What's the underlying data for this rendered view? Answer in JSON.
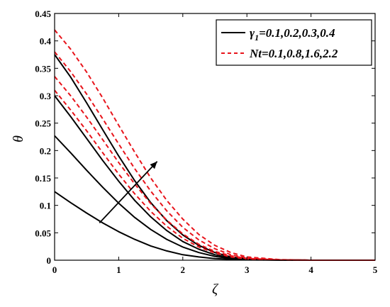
{
  "chart_data": {
    "type": "line",
    "xlabel": "ζ",
    "ylabel": "θ",
    "xlim": [
      0,
      5
    ],
    "ylim": [
      0,
      0.45
    ],
    "x_ticks": [
      0,
      1,
      2,
      3,
      4,
      5
    ],
    "y_ticks": [
      0,
      0.05,
      0.1,
      0.15,
      0.2,
      0.25,
      0.3,
      0.35,
      0.4,
      0.45
    ],
    "x_tick_labels": [
      "0",
      "1",
      "2",
      "3",
      "4",
      "5"
    ],
    "y_tick_labels": [
      "0",
      "0.05",
      "0.1",
      "0.15",
      "0.2",
      "0.25",
      "0.3",
      "0.35",
      "0.4",
      "0.45"
    ],
    "grid": false,
    "legend": {
      "placement": "top-right",
      "entries": [
        {
          "label_main": "γ",
          "label_sub": "1",
          "label_rest": "=0.1,0.2,0.3,0.4",
          "style": "solid",
          "color": "#000000"
        },
        {
          "label_main": "Nt",
          "label_sub": "",
          "label_rest": "=0.1,0.8,1.6,2.2",
          "style": "dashed",
          "color": "#e8141b"
        }
      ]
    },
    "series": [
      {
        "group": "γ1",
        "style": "solid",
        "color": "#000000",
        "x": [
          0,
          0.25,
          0.5,
          0.75,
          1,
          1.25,
          1.5,
          1.75,
          2,
          2.25,
          2.5,
          2.75,
          3,
          3.5,
          4,
          4.5,
          5
        ],
        "y": [
          0.125,
          0.105,
          0.086,
          0.068,
          0.052,
          0.038,
          0.026,
          0.017,
          0.01,
          0.006,
          0.003,
          0.0015,
          0.0006,
          0.0001,
          0,
          0,
          0
        ]
      },
      {
        "group": "γ1",
        "style": "solid",
        "color": "#000000",
        "x": [
          0,
          0.25,
          0.5,
          0.75,
          1,
          1.25,
          1.5,
          1.75,
          2,
          2.25,
          2.5,
          2.75,
          3,
          3.5,
          4,
          4.5,
          5
        ],
        "y": [
          0.227,
          0.196,
          0.164,
          0.133,
          0.104,
          0.078,
          0.056,
          0.038,
          0.024,
          0.014,
          0.007,
          0.003,
          0.0012,
          0.0002,
          0,
          0,
          0
        ]
      },
      {
        "group": "γ1",
        "style": "solid",
        "color": "#000000",
        "x": [
          0,
          0.25,
          0.5,
          0.75,
          1,
          1.25,
          1.5,
          1.75,
          2,
          2.25,
          2.5,
          2.75,
          3,
          3.5,
          4,
          4.5,
          5
        ],
        "y": [
          0.3,
          0.262,
          0.222,
          0.182,
          0.144,
          0.109,
          0.079,
          0.054,
          0.034,
          0.02,
          0.01,
          0.0045,
          0.0017,
          0.0003,
          0,
          0,
          0
        ]
      },
      {
        "group": "γ1",
        "style": "solid",
        "color": "#000000",
        "x": [
          0,
          0.25,
          0.5,
          0.75,
          1,
          1.25,
          1.5,
          1.75,
          2,
          2.25,
          2.5,
          2.75,
          3,
          3.5,
          4,
          4.5,
          5
        ],
        "y": [
          0.375,
          0.334,
          0.287,
          0.238,
          0.19,
          0.145,
          0.105,
          0.072,
          0.046,
          0.027,
          0.014,
          0.006,
          0.0023,
          0.0004,
          0,
          0,
          0
        ]
      },
      {
        "group": "Nt",
        "style": "dashed",
        "color": "#e8141b",
        "x": [
          0,
          0.25,
          0.5,
          0.75,
          1,
          1.25,
          1.5,
          1.75,
          2,
          2.25,
          2.5,
          2.75,
          3,
          3.5,
          4,
          4.5,
          5
        ],
        "y": [
          0.31,
          0.274,
          0.236,
          0.196,
          0.157,
          0.121,
          0.089,
          0.062,
          0.04,
          0.024,
          0.013,
          0.006,
          0.0025,
          0.0005,
          0,
          0,
          0
        ]
      },
      {
        "group": "Nt",
        "style": "dashed",
        "color": "#e8141b",
        "x": [
          0,
          0.25,
          0.5,
          0.75,
          1,
          1.25,
          1.5,
          1.75,
          2,
          2.25,
          2.5,
          2.75,
          3,
          3.5,
          4,
          4.5,
          5
        ],
        "y": [
          0.335,
          0.3,
          0.261,
          0.22,
          0.178,
          0.139,
          0.103,
          0.073,
          0.048,
          0.029,
          0.016,
          0.008,
          0.0032,
          0.0006,
          0,
          0,
          0
        ]
      },
      {
        "group": "Nt",
        "style": "dashed",
        "color": "#e8141b",
        "x": [
          0,
          0.25,
          0.5,
          0.75,
          1,
          1.25,
          1.5,
          1.75,
          2,
          2.25,
          2.5,
          2.75,
          3,
          3.5,
          4,
          4.5,
          5
        ],
        "y": [
          0.38,
          0.344,
          0.303,
          0.258,
          0.212,
          0.167,
          0.126,
          0.09,
          0.06,
          0.037,
          0.021,
          0.01,
          0.0042,
          0.0008,
          0,
          0,
          0
        ]
      },
      {
        "group": "Nt",
        "style": "dashed",
        "color": "#e8141b",
        "x": [
          0,
          0.25,
          0.5,
          0.75,
          1,
          1.25,
          1.5,
          1.75,
          2,
          2.25,
          2.5,
          2.75,
          3,
          3.5,
          4,
          4.5,
          5
        ],
        "y": [
          0.42,
          0.385,
          0.343,
          0.296,
          0.246,
          0.197,
          0.15,
          0.109,
          0.075,
          0.047,
          0.027,
          0.014,
          0.006,
          0.0012,
          0,
          0,
          0
        ]
      }
    ],
    "annotations": [
      {
        "type": "arrow",
        "from": [
          0.7,
          0.068
        ],
        "to": [
          1.6,
          0.18
        ],
        "color": "#000000"
      }
    ]
  }
}
